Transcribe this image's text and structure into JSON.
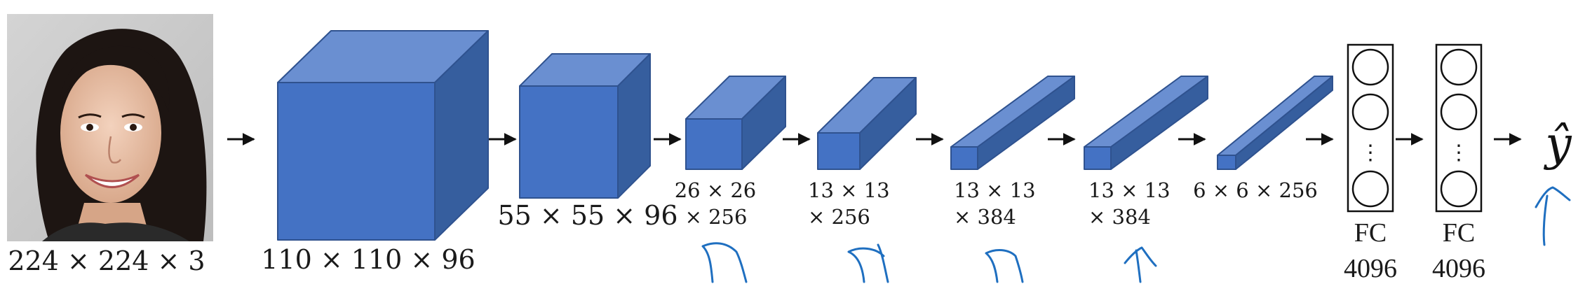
{
  "colors": {
    "front": "#4472c4",
    "top": "#6a8fd1",
    "side": "#365e9e",
    "edge": "#2f528f",
    "arrow": "#111111",
    "annotation": "#1f6fc0",
    "background": "#ffffff"
  },
  "input": {
    "label": "224 × 224 × 3",
    "image": "portrait-photo-of-smiling-woman"
  },
  "volumes": [
    {
      "label_line1": "110 × 110 × 96",
      "label_line2": ""
    },
    {
      "label_line1": "55 × 55 × 96",
      "label_line2": ""
    },
    {
      "label_line1": "26 × 26",
      "label_line2": "× 256"
    },
    {
      "label_line1": "13 × 13",
      "label_line2": "× 256"
    },
    {
      "label_line1": "13 × 13",
      "label_line2": "× 384"
    },
    {
      "label_line1": "13 × 13",
      "label_line2": "× 384"
    },
    {
      "label_line1": "6 × 6 × 256",
      "label_line2": ""
    }
  ],
  "fc_layers": [
    {
      "label_line1": "FC",
      "label_line2": "4096",
      "dots": "⋮"
    },
    {
      "label_line1": "FC",
      "label_line2": "4096",
      "dots": "⋮"
    }
  ],
  "output": {
    "label": "ŷ"
  },
  "annotations": {
    "handwritten_marks": [
      "pen-tick-1",
      "pen-tick-2",
      "pen-tick-3",
      "pen-tick-4",
      "pen-tick-5"
    ]
  }
}
